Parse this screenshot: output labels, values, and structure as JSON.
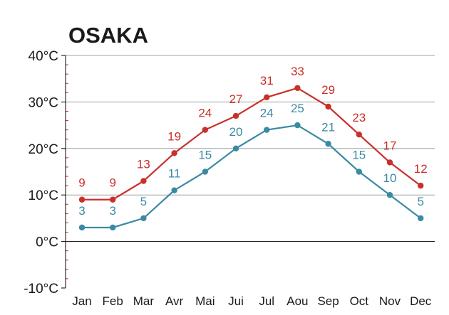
{
  "chart_data": {
    "type": "line",
    "title": "OSAKA",
    "categories": [
      "Jan",
      "Feb",
      "Mar",
      "Avr",
      "Mai",
      "Jui",
      "Jul",
      "Aou",
      "Sep",
      "Oct",
      "Nov",
      "Dec"
    ],
    "series": [
      {
        "values": [
          9,
          9,
          13,
          19,
          24,
          27,
          31,
          33,
          29,
          23,
          17,
          12
        ],
        "color": "#c8302a"
      },
      {
        "values": [
          3,
          3,
          5,
          11,
          15,
          20,
          24,
          25,
          21,
          15,
          10,
          5
        ],
        "color": "#3a8aa3"
      }
    ],
    "yticks": [
      "40°C",
      "30°C",
      "20°C",
      "10°C",
      "0°C",
      "-10°C"
    ],
    "ytick_values": [
      40,
      30,
      20,
      10,
      0,
      -10
    ],
    "ylim": [
      -10,
      40
    ],
    "grid": true,
    "gridline_color": "#a0a0a0",
    "zero_line_color": "#000000",
    "minor_tick_color": "#c8302a"
  }
}
